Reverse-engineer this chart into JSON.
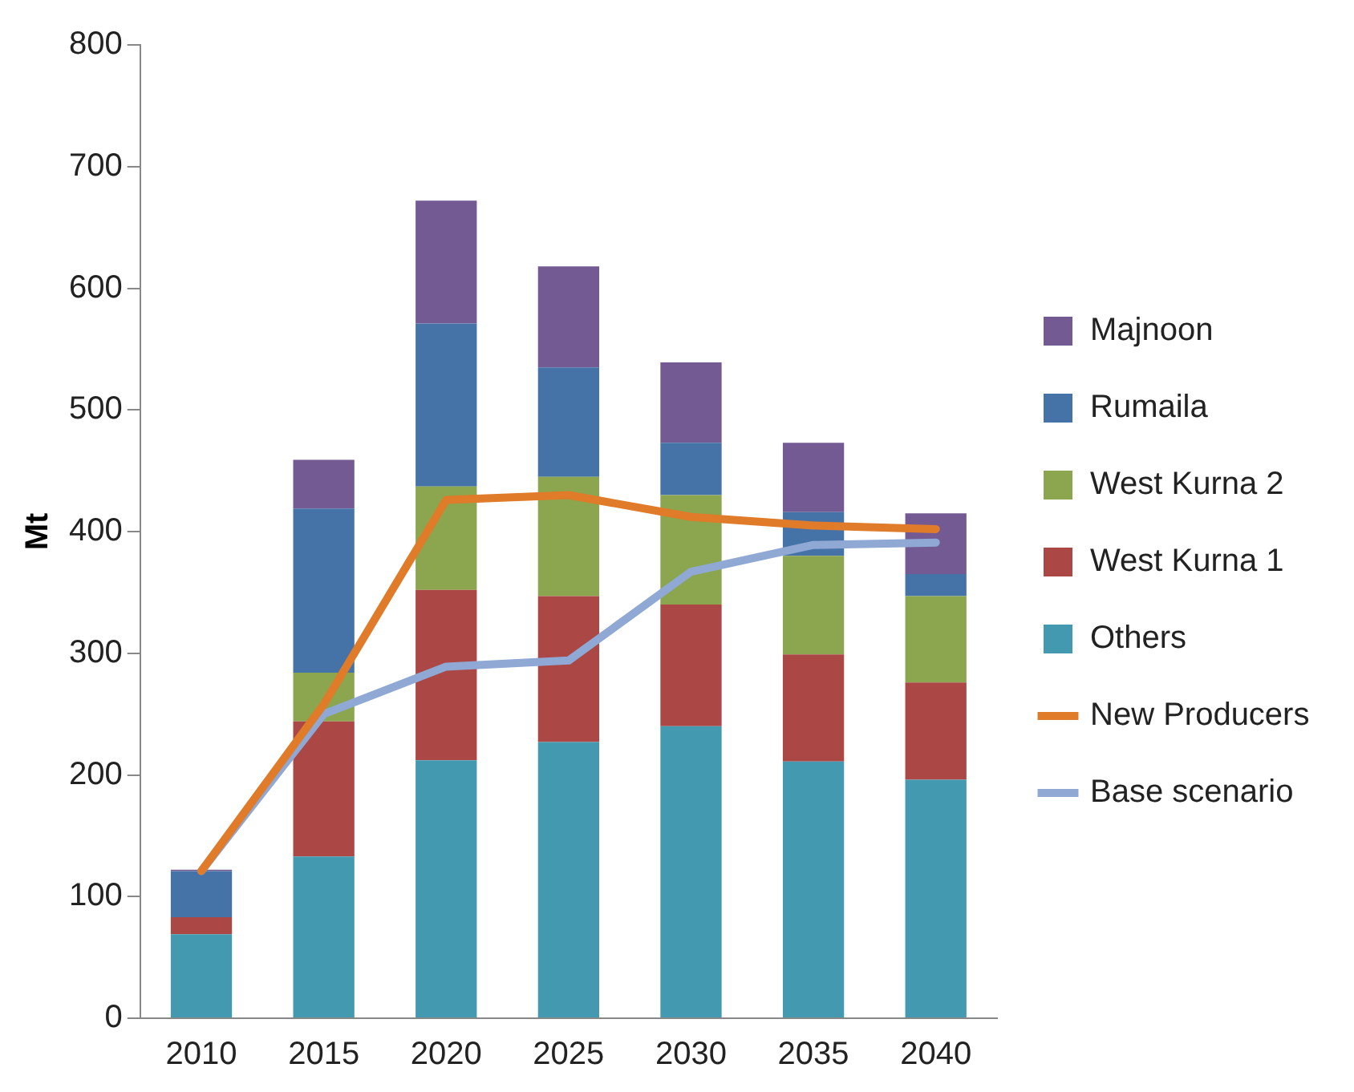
{
  "chart_data": {
    "type": "bar",
    "stacked": true,
    "ylabel": "Mt",
    "categories": [
      "2010",
      "2015",
      "2020",
      "2025",
      "2030",
      "2035",
      "2040"
    ],
    "ylim": [
      0,
      800
    ],
    "yticks": [
      0,
      100,
      200,
      300,
      400,
      500,
      600,
      700,
      800
    ],
    "grid": false,
    "legend": "right",
    "marker": "none",
    "line_style": "solid",
    "series": [
      {
        "name": "Others",
        "color": "#4299b0",
        "values": [
          69,
          133,
          212,
          227,
          240,
          211,
          196
        ]
      },
      {
        "name": "West Kurna 1",
        "color": "#ab4745",
        "values": [
          14,
          111,
          140,
          120,
          100,
          88,
          80
        ]
      },
      {
        "name": "West Kurna 2",
        "color": "#8ba64e",
        "values": [
          0,
          40,
          85,
          98,
          90,
          81,
          71
        ]
      },
      {
        "name": "Rumaila",
        "color": "#4573a7",
        "values": [
          38,
          135,
          134,
          90,
          43,
          36,
          18
        ]
      },
      {
        "name": "Majnoon",
        "color": "#735a93",
        "values": [
          1,
          40,
          101,
          83,
          66,
          57,
          50
        ]
      },
      {
        "name": "New Producers",
        "type": "line",
        "color": "#e07b2a",
        "values": [
          121,
          258,
          426,
          430,
          412,
          405,
          402
        ]
      },
      {
        "name": "Base scenario",
        "type": "line",
        "color": "#8fa8d4",
        "values": [
          121,
          250,
          289,
          294,
          367,
          389,
          391
        ]
      }
    ]
  }
}
